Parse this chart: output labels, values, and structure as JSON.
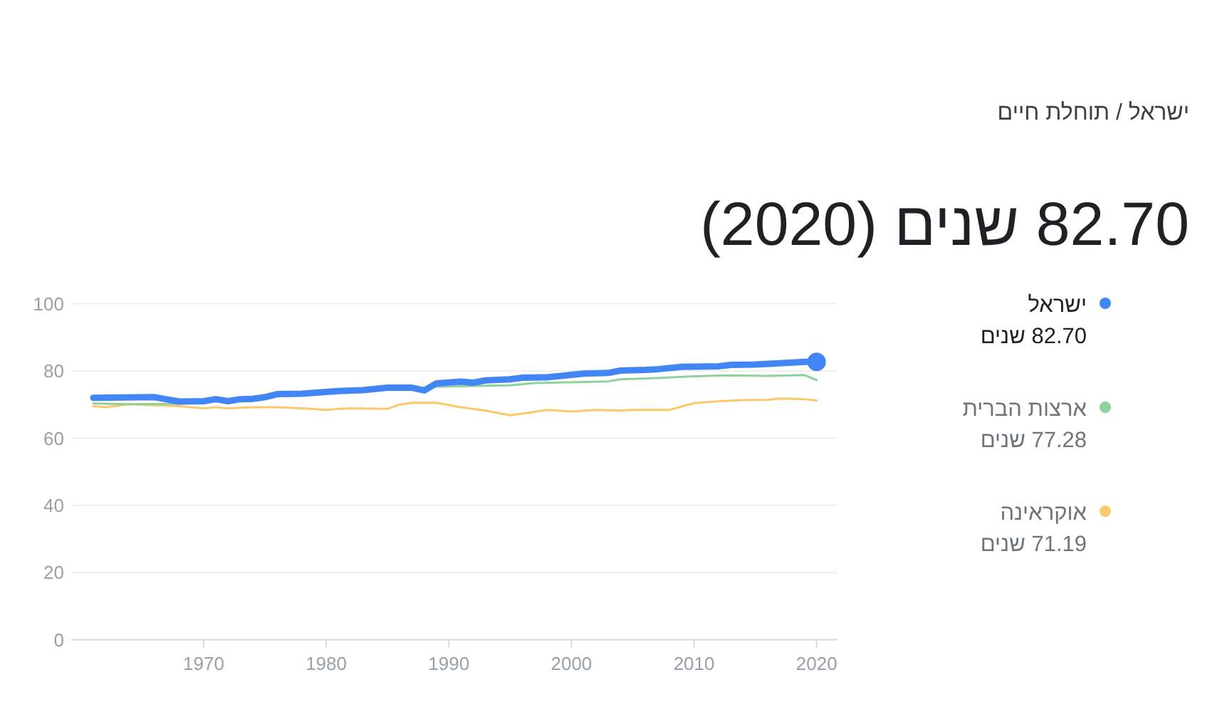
{
  "chart_data": {
    "type": "line",
    "subtitle": "ישראל / תוחלת חיים",
    "title": "82.70 שנים (2020)",
    "xlim": [
      1959.2,
      2021.7
    ],
    "xticks": [
      1970,
      1980,
      1990,
      2000,
      2010,
      2020
    ],
    "ylim": [
      0,
      100
    ],
    "yticks": [
      0,
      20,
      40,
      60,
      80,
      100
    ],
    "grid": "y",
    "legend": "right",
    "annotations": [
      "82.70 שנים",
      "77.28 שנים",
      "71.19 שנים"
    ],
    "series": [
      {
        "name": "ישראל",
        "color": "#4285f4",
        "x": [
          1961,
          1966,
          1968,
          1970,
          1971,
          1972,
          1973,
          1974,
          1975,
          1976,
          1978,
          1981,
          1983,
          1985,
          1987,
          1988,
          1989,
          1991,
          1992,
          1993,
          1995,
          1996,
          1998,
          2001,
          2003,
          2004,
          2006,
          2007,
          2009,
          2012,
          2013,
          2015,
          2018,
          2019,
          2020
        ],
        "values": [
          72.0,
          72.2,
          70.9,
          71.0,
          71.6,
          71.0,
          71.6,
          71.7,
          72.2,
          73.1,
          73.2,
          74.0,
          74.3,
          75.0,
          75.0,
          74.2,
          76.3,
          76.8,
          76.5,
          77.2,
          77.5,
          78.0,
          78.1,
          79.2,
          79.4,
          80.1,
          80.3,
          80.5,
          81.2,
          81.4,
          81.8,
          81.9,
          82.5,
          82.7,
          82.7
        ]
      },
      {
        "name": "ארצות הברית",
        "color": "#8fd19e",
        "x": [
          1961,
          1964,
          1968,
          1978,
          1989,
          1993,
          1995,
          1997,
          2003,
          2004,
          2007,
          2010,
          2013,
          2016,
          2019,
          2020
        ],
        "values": [
          70.3,
          70.1,
          70.2,
          null,
          75.3,
          75.6,
          75.7,
          76.4,
          76.9,
          77.5,
          77.9,
          78.4,
          78.7,
          78.5,
          78.8,
          77.28
        ]
      },
      {
        "name": "אוקראינה",
        "color": "#fbc96b",
        "x": [
          1961,
          1962,
          1964,
          1966,
          1968,
          1970,
          1971,
          1972,
          1974,
          1976,
          1978,
          1980,
          1981,
          1982,
          1985,
          1986,
          1987,
          1989,
          1991,
          1993,
          1995,
          1996,
          1998,
          2000,
          2002,
          2004,
          2005,
          2008,
          2010,
          2012,
          2014,
          2016,
          2017,
          2019,
          2020
        ],
        "values": [
          69.5,
          69.2,
          70.1,
          69.8,
          69.5,
          68.9,
          69.2,
          68.9,
          69.2,
          69.2,
          68.9,
          68.4,
          68.7,
          68.9,
          68.7,
          70.0,
          70.5,
          70.5,
          69.2,
          68.2,
          66.8,
          67.3,
          68.4,
          67.9,
          68.4,
          68.2,
          68.4,
          68.4,
          70.4,
          71.0,
          71.3,
          71.4,
          71.8,
          71.6,
          71.19
        ]
      },
      {
        "type": "scatter",
        "color": "#4285f4",
        "marker": "circle",
        "x": [
          2020
        ],
        "values": [
          82.7
        ]
      }
    ]
  }
}
